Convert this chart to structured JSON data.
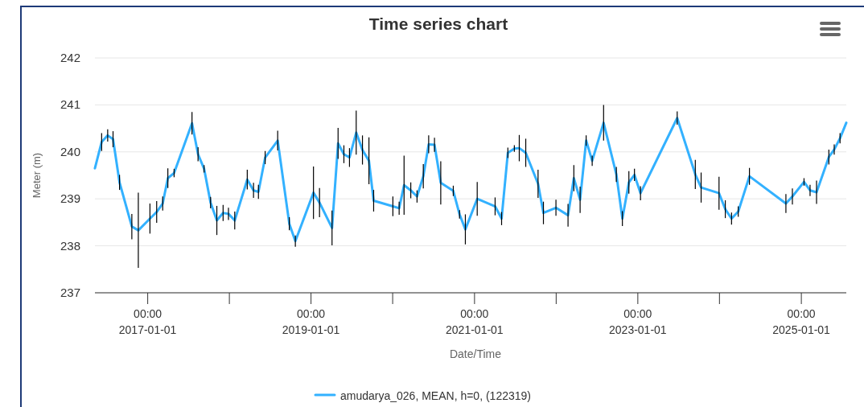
{
  "chart_data": {
    "type": "line",
    "title": "Time series chart",
    "xlabel": "Date/Time",
    "ylabel": "Meter (m)",
    "x": [
      "2016-05-10",
      "2016-06-09",
      "2016-07-06",
      "2016-07-30",
      "2016-08-28",
      "2016-10-22",
      "2016-11-20",
      "2017-01-11",
      "2017-02-10",
      "2017-03-09",
      "2017-04-01",
      "2017-04-29",
      "2017-07-18",
      "2017-08-14",
      "2017-09-10",
      "2017-10-09",
      "2017-11-06",
      "2017-12-04",
      "2017-12-28",
      "2018-01-25",
      "2018-03-22",
      "2018-04-19",
      "2018-05-11",
      "2018-06-10",
      "2018-08-05",
      "2018-09-26",
      "2018-10-23",
      "2019-01-12",
      "2019-02-08",
      "2019-04-05",
      "2019-05-02",
      "2019-05-28",
      "2019-06-22",
      "2019-07-22",
      "2019-08-19",
      "2019-09-17",
      "2019-10-08",
      "2020-01-02",
      "2020-01-30",
      "2020-02-21",
      "2020-03-22",
      "2020-04-19",
      "2020-05-17",
      "2020-06-10",
      "2020-07-06",
      "2020-08-03",
      "2020-09-28",
      "2020-10-26",
      "2020-11-21",
      "2021-01-13",
      "2021-04-03",
      "2021-05-02",
      "2021-05-30",
      "2021-06-28",
      "2021-07-20",
      "2021-08-18",
      "2021-10-12",
      "2021-11-05",
      "2021-12-31",
      "2022-02-23",
      "2022-03-21",
      "2022-04-18",
      "2022-05-15",
      "2022-06-11",
      "2022-08-01",
      "2022-09-27",
      "2022-10-24",
      "2022-11-22",
      "2022-12-17",
      "2023-01-13",
      "2023-06-26",
      "2023-09-15",
      "2023-10-11",
      "2023-12-30",
      "2024-01-27",
      "2024-02-24",
      "2024-03-25",
      "2024-05-14",
      "2024-10-24",
      "2024-11-22",
      "2025-01-13",
      "2025-02-09",
      "2025-03-10",
      "2025-05-04",
      "2025-05-28",
      "2025-06-23",
      "2025-07-21"
    ],
    "series": [
      {
        "name": "amudarya_026, MEAN, h=0, (122319)",
        "color": "#33b1ff",
        "values": [
          239.65,
          240.21,
          240.35,
          240.27,
          239.35,
          238.41,
          238.33,
          238.58,
          238.72,
          238.9,
          239.44,
          239.55,
          240.61,
          239.95,
          239.64,
          238.92,
          238.54,
          238.7,
          238.68,
          238.54,
          239.41,
          239.18,
          239.15,
          239.88,
          240.24,
          238.47,
          238.1,
          239.13,
          238.92,
          238.38,
          240.18,
          239.95,
          239.88,
          240.41,
          240.04,
          239.81,
          238.96,
          238.84,
          238.8,
          239.29,
          239.18,
          239.05,
          239.48,
          240.16,
          240.15,
          239.34,
          239.17,
          238.67,
          238.35,
          239.0,
          238.84,
          238.58,
          239.98,
          240.07,
          240.08,
          239.98,
          239.32,
          238.7,
          238.81,
          238.65,
          239.44,
          238.98,
          240.24,
          239.81,
          240.62,
          239.52,
          238.58,
          239.35,
          239.51,
          239.12,
          240.72,
          239.52,
          239.24,
          239.12,
          238.78,
          238.58,
          238.73,
          239.48,
          238.9,
          239.05,
          239.36,
          239.18,
          239.14,
          239.89,
          240.05,
          240.29,
          240.62
        ],
        "errors": [
          null,
          0.19,
          0.13,
          0.17,
          0.16,
          0.27,
          0.8,
          0.32,
          0.23,
          0.15,
          0.21,
          0.09,
          0.24,
          0.15,
          0.08,
          0.12,
          0.31,
          0.17,
          0.13,
          0.19,
          0.21,
          0.16,
          0.15,
          0.14,
          0.21,
          0.14,
          0.12,
          0.56,
          0.31,
          0.37,
          0.33,
          0.19,
          0.2,
          0.47,
          0.31,
          0.5,
          0.23,
          0.21,
          0.14,
          0.63,
          0.17,
          0.13,
          0.26,
          0.19,
          0.15,
          0.46,
          0.11,
          0.09,
          0.32,
          0.36,
          0.19,
          0.14,
          0.11,
          0.07,
          0.28,
          0.3,
          0.3,
          0.24,
          0.17,
          0.24,
          0.28,
          0.28,
          0.11,
          0.11,
          0.38,
          0.16,
          0.16,
          0.24,
          0.13,
          0.15,
          0.14,
          0.31,
          0.32,
          0.35,
          0.19,
          0.13,
          0.11,
          0.18,
          0.2,
          0.17,
          0.08,
          0.12,
          0.25,
          0.16,
          0.11,
          0.11,
          null
        ]
      }
    ],
    "xlim": [
      "2016-05-10",
      "2025-07-21"
    ],
    "xticks": [
      {
        "value": "2017-01-01",
        "label": "00:00\n2017-01-01"
      },
      {
        "value": "2018-01-01",
        "label": null
      },
      {
        "value": "2019-01-01",
        "label": "00:00\n2019-01-01"
      },
      {
        "value": "2020-01-01",
        "label": null
      },
      {
        "value": "2021-01-01",
        "label": "00:00\n2021-01-01"
      },
      {
        "value": "2022-01-01",
        "label": null
      },
      {
        "value": "2023-01-01",
        "label": "00:00\n2023-01-01"
      },
      {
        "value": "2024-01-01",
        "label": null
      },
      {
        "value": "2025-01-01",
        "label": "00:00\n2025-01-01"
      }
    ],
    "ylim": [
      237,
      242
    ],
    "yticks": [
      237,
      238,
      239,
      240,
      241,
      242
    ],
    "grid": "y",
    "legend": "bottom",
    "marker": "none",
    "line_style": "solid"
  }
}
